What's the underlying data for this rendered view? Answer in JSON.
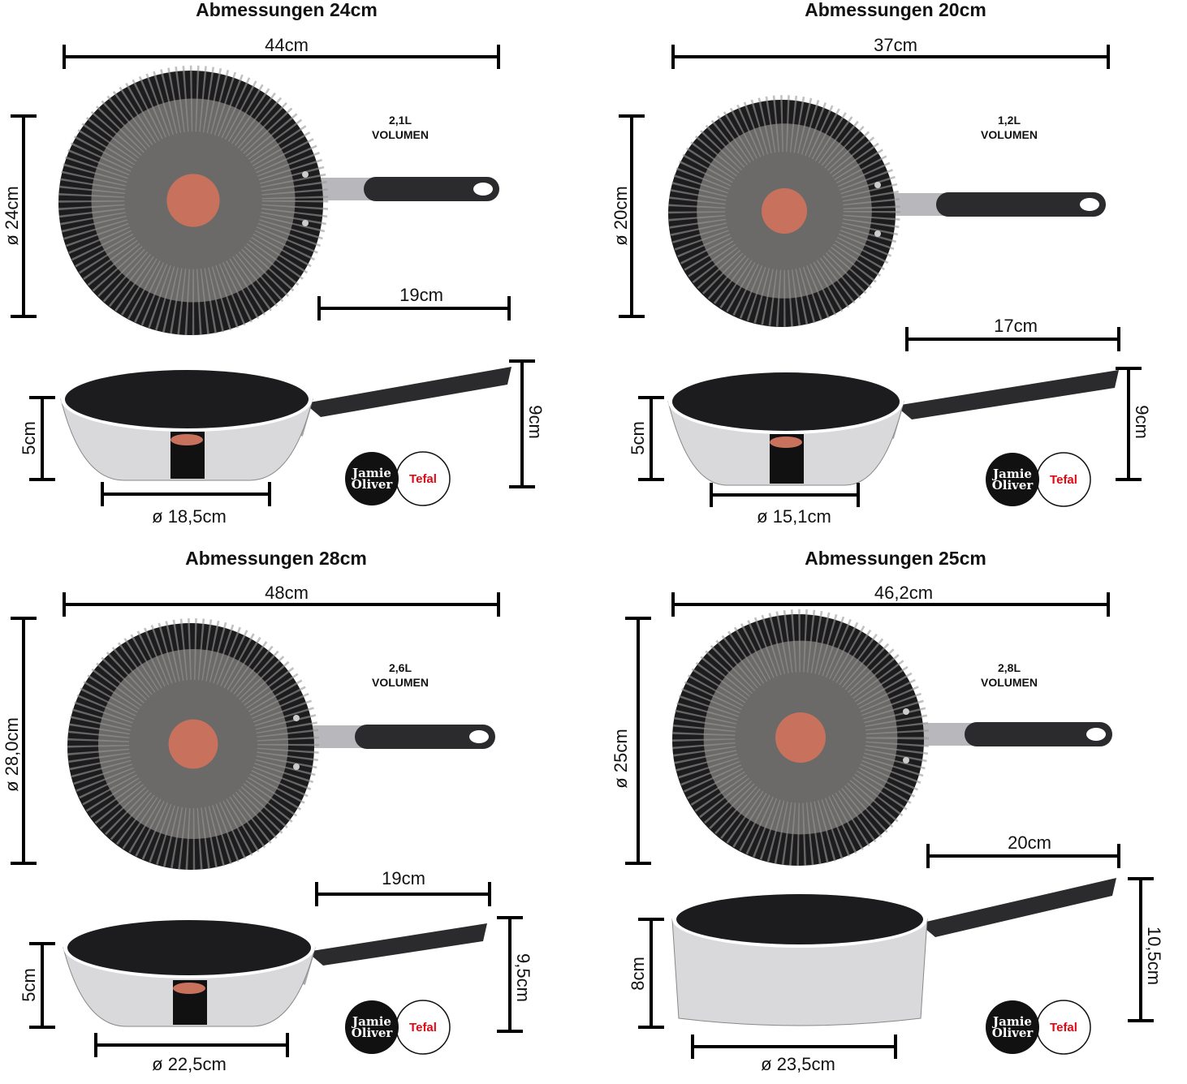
{
  "colors": {
    "pan_black": "#1c1c1e",
    "pan_inner": "#6b6a69",
    "thermo_spot": "#c8725e",
    "steel": "#d9d9dc",
    "dimension_line": "#000000",
    "tefal_red": "#e30613"
  },
  "logo": {
    "left": "Jamie Oliver",
    "left_line1": "Jamie",
    "left_line2": "Oliver",
    "right": "Tefal"
  },
  "panels": [
    {
      "title": "Abmessungen 24cm",
      "length": "44cm",
      "diameter": "ø 24cm",
      "volume": "2,1L",
      "volume_word": "VOLUMEN",
      "handle": "19cm",
      "side_height": "5cm",
      "total_height": "9cm",
      "base": "ø 18,5cm"
    },
    {
      "title": "Abmessungen 20cm",
      "length": "37cm",
      "diameter": "ø 20cm",
      "volume": "1,2L",
      "volume_word": "VOLUMEN",
      "handle": "17cm",
      "side_height": "5cm",
      "total_height": "9cm",
      "base": "ø 15,1cm"
    },
    {
      "title": "Abmessungen 28cm",
      "length": "48cm",
      "diameter": "ø 28,0cm",
      "volume": "2,6L",
      "volume_word": "VOLUMEN",
      "handle": "19cm",
      "side_height": "5cm",
      "total_height": "9,5cm",
      "base": "ø 22,5cm"
    },
    {
      "title": "Abmessungen 25cm",
      "length": "46,2cm",
      "diameter": "ø 25cm",
      "volume": "2,8L",
      "volume_word": "VOLUMEN",
      "handle": "20cm",
      "side_height": "8cm",
      "total_height": "10,5cm",
      "base": "ø 23,5cm"
    }
  ]
}
